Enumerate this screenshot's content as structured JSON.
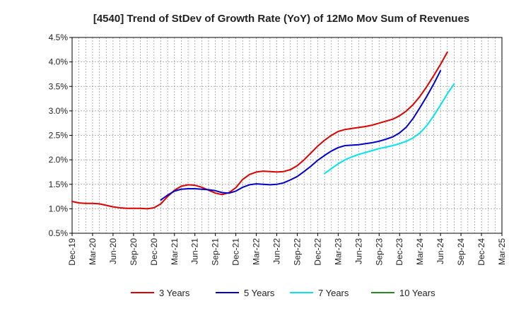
{
  "chart_data": {
    "type": "line",
    "title": "[4540]  Trend of StDev of Growth Rate (YoY) of 12Mo Mov Sum of Revenues",
    "xlabel": "",
    "ylabel": "",
    "ylim": [
      0.5,
      4.5
    ],
    "ytick_values": [
      0.5,
      1.0,
      1.5,
      2.0,
      2.5,
      3.0,
      3.5,
      4.0,
      4.5
    ],
    "ytick_labels": [
      "0.5%",
      "1.0%",
      "1.5%",
      "2.0%",
      "2.5%",
      "3.0%",
      "3.5%",
      "4.0%",
      "4.5%"
    ],
    "x_categories": [
      "Dec-19",
      "Mar-20",
      "Jun-20",
      "Sep-20",
      "Dec-20",
      "Mar-21",
      "Jun-21",
      "Sep-21",
      "Dec-21",
      "Mar-22",
      "Jun-22",
      "Sep-22",
      "Dec-22",
      "Mar-23",
      "Jun-23",
      "Sep-23",
      "Dec-23",
      "Mar-24",
      "Jun-24",
      "Sep-24",
      "Dec-24",
      "Mar-25"
    ],
    "grid": true,
    "legend_position": "bottom",
    "series": [
      {
        "name": "3 Years",
        "color": "#dd0000",
        "start_index": 0,
        "values": [
          1.15,
          1.12,
          1.11,
          1.11,
          1.1,
          1.07,
          1.04,
          1.02,
          1.01,
          1.01,
          1.01,
          1.0,
          1.02,
          1.1,
          1.25,
          1.38,
          1.46,
          1.49,
          1.48,
          1.44,
          1.38,
          1.32,
          1.29,
          1.33,
          1.43,
          1.6,
          1.7,
          1.75,
          1.77,
          1.76,
          1.75,
          1.76,
          1.8,
          1.88,
          2.0,
          2.14,
          2.28,
          2.4,
          2.5,
          2.58,
          2.62,
          2.64,
          2.66,
          2.68,
          2.71,
          2.75,
          2.79,
          2.83,
          2.9,
          3.0,
          3.13,
          3.3,
          3.5,
          3.72,
          3.95,
          4.2
        ]
      },
      {
        "name": "5 Years",
        "color": "#0000cc",
        "start_index": 13,
        "values": [
          1.18,
          1.28,
          1.36,
          1.4,
          1.41,
          1.41,
          1.4,
          1.39,
          1.37,
          1.33,
          1.32,
          1.36,
          1.44,
          1.49,
          1.51,
          1.5,
          1.49,
          1.5,
          1.53,
          1.59,
          1.66,
          1.76,
          1.87,
          1.99,
          2.09,
          2.18,
          2.25,
          2.29,
          2.3,
          2.31,
          2.33,
          2.35,
          2.38,
          2.42,
          2.47,
          2.55,
          2.67,
          2.85,
          3.07,
          3.3,
          3.55,
          3.82
        ]
      },
      {
        "name": "7 Years",
        "color": "#00e5ee",
        "start_index": 37,
        "values": [
          1.72,
          1.82,
          1.92,
          2.0,
          2.06,
          2.11,
          2.15,
          2.19,
          2.23,
          2.26,
          2.29,
          2.33,
          2.38,
          2.45,
          2.55,
          2.7,
          2.9,
          3.12,
          3.35,
          3.55
        ]
      },
      {
        "name": "10 Years",
        "color": "#228b22",
        "start_index": 0,
        "values": []
      }
    ]
  }
}
